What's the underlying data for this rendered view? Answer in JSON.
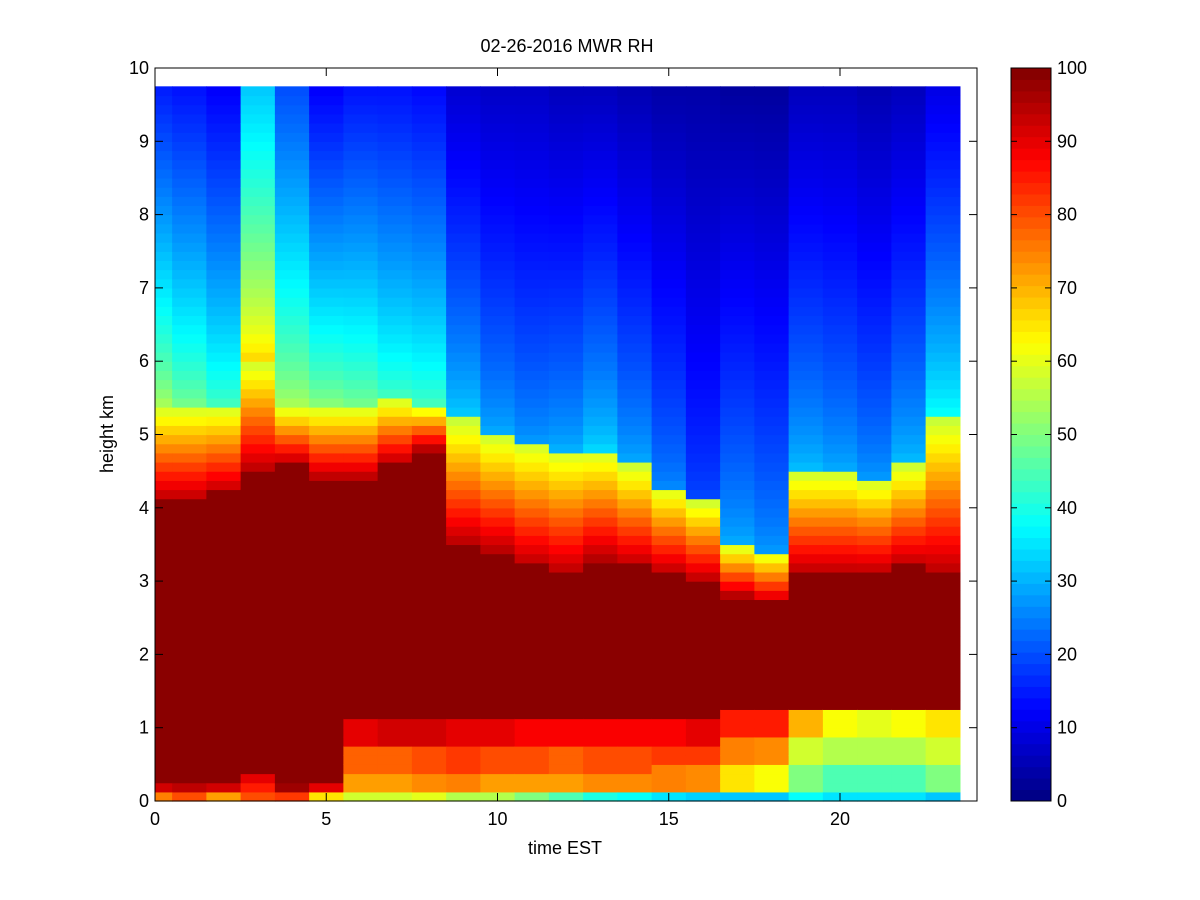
{
  "chart_data": {
    "type": "heatmap",
    "title": "02-26-2016 MWR RH",
    "xlabel": "time EST",
    "ylabel": "height km",
    "xlim": [
      0,
      24
    ],
    "ylim": [
      0,
      10
    ],
    "xticks": [
      0,
      5,
      10,
      15,
      20
    ],
    "xtick_labels": [
      "0",
      "5",
      "10",
      "15",
      "20"
    ],
    "yticks": [
      0,
      1,
      2,
      3,
      4,
      5,
      6,
      7,
      8,
      9,
      10
    ],
    "ytick_labels": [
      "0",
      "1",
      "2",
      "3",
      "4",
      "5",
      "6",
      "7",
      "8",
      "9",
      "10"
    ],
    "colorbar": {
      "range": [
        0,
        100
      ],
      "ticks": [
        0,
        10,
        20,
        30,
        40,
        50,
        60,
        70,
        80,
        90,
        100
      ],
      "tick_labels": [
        "0",
        "10",
        "20",
        "30",
        "40",
        "50",
        "60",
        "70",
        "80",
        "90",
        "100"
      ],
      "colormap": "jet"
    },
    "times": [
      0,
      1,
      2,
      3,
      4,
      5,
      6,
      7,
      8,
      9,
      10,
      11,
      12,
      13,
      14,
      15,
      16,
      17,
      18,
      19,
      20,
      21,
      22,
      23
    ],
    "height_top": 9.75,
    "columns": [
      {
        "t": 0,
        "low": [
          90,
          92,
          97
        ],
        "core_bottom": 0.25,
        "core_top": 4.1,
        "trans_top": 5.4,
        "upper_start": 55,
        "upper_end": 15,
        "surface": 75
      },
      {
        "t": 1,
        "low": [
          92,
          94,
          97
        ],
        "core_bottom": 0.25,
        "core_top": 4.1,
        "trans_top": 5.4,
        "upper_start": 50,
        "upper_end": 14,
        "surface": 80
      },
      {
        "t": 2,
        "low": [
          90,
          92,
          96
        ],
        "core_bottom": 0.25,
        "core_top": 4.2,
        "trans_top": 5.4,
        "upper_start": 45,
        "upper_end": 12,
        "surface": 72
      },
      {
        "t": 3,
        "low": [
          85,
          88,
          90
        ],
        "core_bottom": 0.4,
        "core_top": 4.5,
        "trans_top": 6.0,
        "upper_start": 68,
        "upper_end": 32,
        "surface": 80
      },
      {
        "t": 4,
        "low": [
          95,
          97,
          98
        ],
        "core_bottom": 0.25,
        "core_top": 4.6,
        "trans_top": 5.4,
        "upper_start": 55,
        "upper_end": 20,
        "surface": 82
      },
      {
        "t": 5,
        "low": [
          88,
          90,
          96
        ],
        "core_bottom": 0.25,
        "core_top": 4.4,
        "trans_top": 5.4,
        "upper_start": 52,
        "upper_end": 12,
        "surface": 65
      },
      {
        "t": 6,
        "low": [
          72,
          78,
          90
        ],
        "core_bottom": 1.1,
        "core_top": 4.4,
        "trans_top": 5.4,
        "upper_start": 50,
        "upper_end": 14,
        "surface": 58
      },
      {
        "t": 7,
        "low": [
          72,
          78,
          92
        ],
        "core_bottom": 1.1,
        "core_top": 4.6,
        "trans_top": 5.5,
        "upper_start": 45,
        "upper_end": 14,
        "surface": 58
      },
      {
        "t": 8,
        "low": [
          74,
          80,
          92
        ],
        "core_bottom": 1.1,
        "core_top": 4.8,
        "trans_top": 5.4,
        "upper_start": 45,
        "upper_end": 13,
        "surface": 60
      },
      {
        "t": 9,
        "low": [
          75,
          82,
          90
        ],
        "core_bottom": 1.1,
        "core_top": 3.5,
        "trans_top": 5.2,
        "upper_start": 34,
        "upper_end": 8,
        "surface": 55
      },
      {
        "t": 10,
        "low": [
          72,
          80,
          90
        ],
        "core_bottom": 1.1,
        "core_top": 3.4,
        "trans_top": 5.0,
        "upper_start": 30,
        "upper_end": 7,
        "surface": 55
      },
      {
        "t": 11,
        "low": [
          72,
          80,
          88
        ],
        "core_bottom": 1.1,
        "core_top": 3.2,
        "trans_top": 4.9,
        "upper_start": 28,
        "upper_end": 7,
        "surface": 50
      },
      {
        "t": 12,
        "low": [
          72,
          78,
          88
        ],
        "core_bottom": 1.1,
        "core_top": 3.1,
        "trans_top": 4.8,
        "upper_start": 30,
        "upper_end": 6,
        "surface": 45
      },
      {
        "t": 13,
        "low": [
          74,
          80,
          88
        ],
        "core_bottom": 1.1,
        "core_top": 3.3,
        "trans_top": 4.8,
        "upper_start": 34,
        "upper_end": 6,
        "surface": 40
      },
      {
        "t": 14,
        "low": [
          74,
          80,
          88
        ],
        "core_bottom": 1.1,
        "core_top": 3.2,
        "trans_top": 4.6,
        "upper_start": 30,
        "upper_end": 5,
        "surface": 38
      },
      {
        "t": 15,
        "low": [
          75,
          82,
          88
        ],
        "core_bottom": 1.15,
        "core_top": 3.1,
        "trans_top": 4.3,
        "upper_start": 26,
        "upper_end": 4,
        "surface": 35
      },
      {
        "t": 16,
        "low": [
          74,
          82,
          90
        ],
        "core_bottom": 1.15,
        "core_top": 3.0,
        "trans_top": 4.1,
        "upper_start": 20,
        "upper_end": 4,
        "surface": 33
      },
      {
        "t": 17,
        "low": [
          65,
          75,
          85
        ],
        "core_bottom": 1.2,
        "core_top": 2.8,
        "trans_top": 3.5,
        "upper_start": 30,
        "upper_end": 3,
        "surface": 32
      },
      {
        "t": 18,
        "low": [
          62,
          74,
          85
        ],
        "core_bottom": 1.2,
        "core_top": 2.7,
        "trans_top": 3.4,
        "upper_start": 28,
        "upper_end": 3,
        "surface": 32
      },
      {
        "t": 19,
        "low": [
          50,
          58,
          70
        ],
        "core_bottom": 1.3,
        "core_top": 3.1,
        "trans_top": 4.5,
        "upper_start": 32,
        "upper_end": 6,
        "surface": 38
      },
      {
        "t": 20,
        "low": [
          45,
          55,
          62
        ],
        "core_bottom": 1.3,
        "core_top": 3.1,
        "trans_top": 4.5,
        "upper_start": 30,
        "upper_end": 6,
        "surface": 35
      },
      {
        "t": 21,
        "low": [
          45,
          55,
          60
        ],
        "core_bottom": 1.3,
        "core_top": 3.1,
        "trans_top": 4.4,
        "upper_start": 28,
        "upper_end": 5,
        "surface": 35
      },
      {
        "t": 22,
        "low": [
          45,
          55,
          62
        ],
        "core_bottom": 1.3,
        "core_top": 3.2,
        "trans_top": 4.6,
        "upper_start": 32,
        "upper_end": 6,
        "surface": 35
      },
      {
        "t": 23,
        "low": [
          50,
          58,
          65
        ],
        "core_bottom": 1.3,
        "core_top": 3.1,
        "trans_top": 5.2,
        "upper_start": 40,
        "upper_end": 10,
        "surface": 32
      }
    ]
  }
}
